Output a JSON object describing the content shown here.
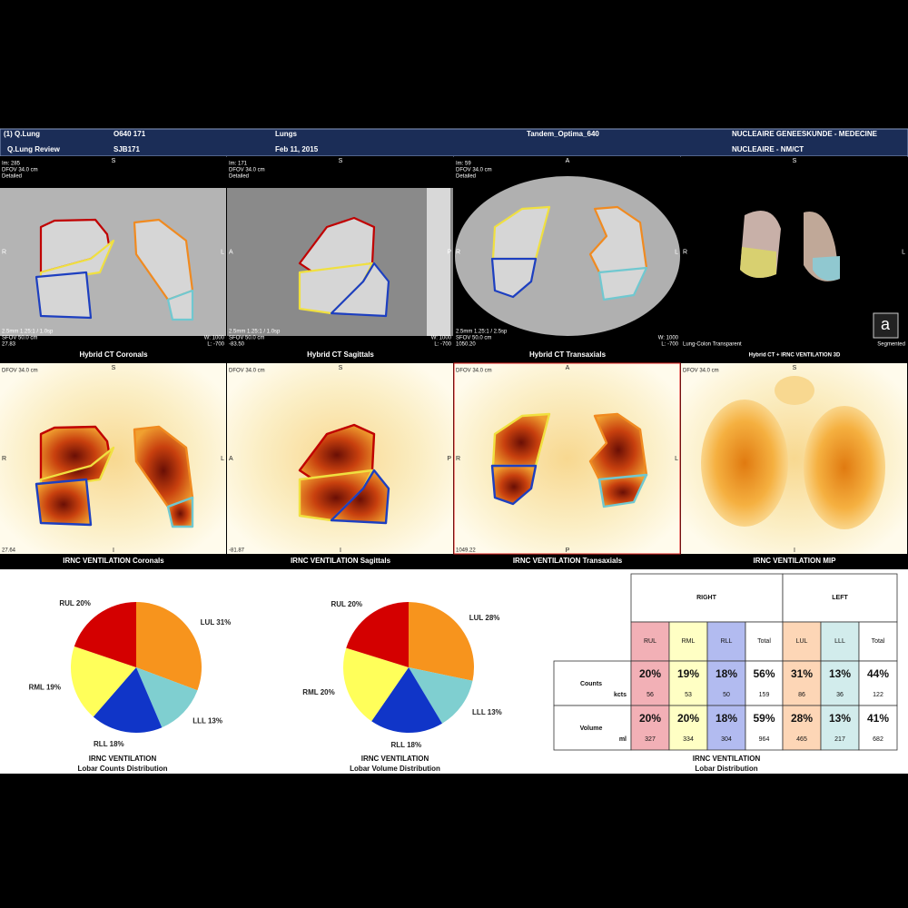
{
  "header": {
    "line1": [
      "(1) Q.Lung",
      "O640 171",
      "Lungs",
      "Tandem_Optima_640",
      "NUCLEAIRE GENEESKUNDE - MEDECINE"
    ],
    "line2": [
      "Q.Lung Review",
      "SJB171",
      "Feb 11, 2015",
      "NUCLEAIRE - NM/CT"
    ]
  },
  "ct_panels": [
    {
      "caption": "Hybrid CT Coronals",
      "top_left": [
        "Im: 285",
        "DFOV 34.0 cm",
        "Detailed"
      ],
      "top": "S",
      "left": "R",
      "right": "L",
      "bottom_left": [
        "2.5mm 1.25:1 / 1.0sp",
        "SFOV 50.0 cm",
        "27.83"
      ],
      "bottom_right": [
        "W: 1000",
        "L: -700"
      ]
    },
    {
      "caption": "Hybrid CT Sagittals",
      "top_left": [
        "Im: 171",
        "DFOV 34.0 cm",
        "Detailed"
      ],
      "top": "S",
      "left": "A",
      "right": "P",
      "bottom_left": [
        "2.5mm 1.25:1 / 1.0sp",
        "SFOV 50.0 cm",
        "-83.50"
      ],
      "bottom_right": [
        "W: 1000",
        "L: -700"
      ]
    },
    {
      "caption": "Hybrid CT Transaxials",
      "top_left": [
        "Im: 59",
        "DFOV 34.0 cm",
        "Detailed"
      ],
      "top": "A",
      "left": "R",
      "right": "L",
      "bottom_left": [
        "2.5mm 1.25:1 / 2.5sp",
        "SFOV 50.0 cm",
        "1050.20"
      ],
      "bottom_right": [
        "W: 1000",
        "L: -700"
      ]
    },
    {
      "caption": "Hybrid CT + IRNC VENTILATION 3D",
      "top": "S",
      "left": "R",
      "right": "L",
      "bottom_left": [
        "Lung-Colon Transparent"
      ],
      "bottom_right": [
        "Segmented"
      ],
      "icon": "a"
    }
  ],
  "vent_panels": [
    {
      "caption": "IRNC VENTILATION Coronals",
      "top_left": [
        "DFOV 34.0 cm"
      ],
      "top": "S",
      "left": "R",
      "right": "L",
      "bottom": "I",
      "bottom_left": [
        "27.64"
      ]
    },
    {
      "caption": "IRNC VENTILATION Sagittals",
      "top_left": [
        "DFOV 34.0 cm"
      ],
      "top": "S",
      "left": "A",
      "right": "P",
      "bottom": "I",
      "bottom_left": [
        "-81.87"
      ]
    },
    {
      "caption": "IRNC VENTILATION Transaxials",
      "top_left": [
        "DFOV 34.0 cm"
      ],
      "top": "A",
      "left": "R",
      "right": "L",
      "bottom": "P",
      "bottom_left": [
        "1049.22"
      ]
    },
    {
      "caption": "IRNC VENTILATION MIP",
      "top_left": [
        "DFOV 34.0 cm"
      ],
      "top": "S",
      "bottom": "I"
    }
  ],
  "chart_data": [
    {
      "type": "pie",
      "title": "IRNC VENTILATION",
      "subtitle": "Lobar Counts Distribution",
      "categories": [
        "LUL",
        "LLL",
        "RLL",
        "RML",
        "RUL"
      ],
      "values": [
        31,
        13,
        18,
        19,
        20
      ],
      "value_labels": [
        "LUL 31%",
        "LLL 13%",
        "RLL 18%",
        "RML 19%",
        "RUL 20%"
      ],
      "colors": [
        "#f7941d",
        "#7fcfd0",
        "#1035c8",
        "#ffff5a",
        "#d40000"
      ]
    },
    {
      "type": "pie",
      "title": "IRNC VENTILATION",
      "subtitle": "Lobar Volume Distribution",
      "categories": [
        "LUL",
        "LLL",
        "RLL",
        "RML",
        "RUL"
      ],
      "values": [
        28,
        13,
        18,
        20,
        20
      ],
      "value_labels": [
        "LUL 28%",
        "LLL 13%",
        "RLL 18%",
        "RML 20%",
        "RUL 20%"
      ],
      "colors": [
        "#f7941d",
        "#7fcfd0",
        "#1035c8",
        "#ffff5a",
        "#d40000"
      ]
    }
  ],
  "table": {
    "title": "IRNC VENTILATION",
    "subtitle": "Lobar Distribution",
    "groups": [
      "RIGHT",
      "LEFT"
    ],
    "columns": [
      "RUL",
      "RML",
      "RLL",
      "Total",
      "LUL",
      "LLL",
      "Total"
    ],
    "column_colors": [
      "#f2b0b6",
      "#ffffc4",
      "#b2bbf0",
      "#ffffff",
      "#fdd6b6",
      "#d2ecec",
      "#ffffff"
    ],
    "rows": [
      {
        "label": "Counts",
        "unit": "kcts",
        "percent": [
          "20%",
          "19%",
          "18%",
          "56%",
          "31%",
          "13%",
          "44%"
        ],
        "amounts": [
          "56",
          "53",
          "50",
          "159",
          "86",
          "36",
          "122"
        ]
      },
      {
        "label": "Volume",
        "unit": "ml",
        "percent": [
          "20%",
          "20%",
          "18%",
          "59%",
          "28%",
          "13%",
          "41%"
        ],
        "amounts": [
          "327",
          "334",
          "304",
          "964",
          "465",
          "217",
          "682"
        ]
      }
    ]
  }
}
